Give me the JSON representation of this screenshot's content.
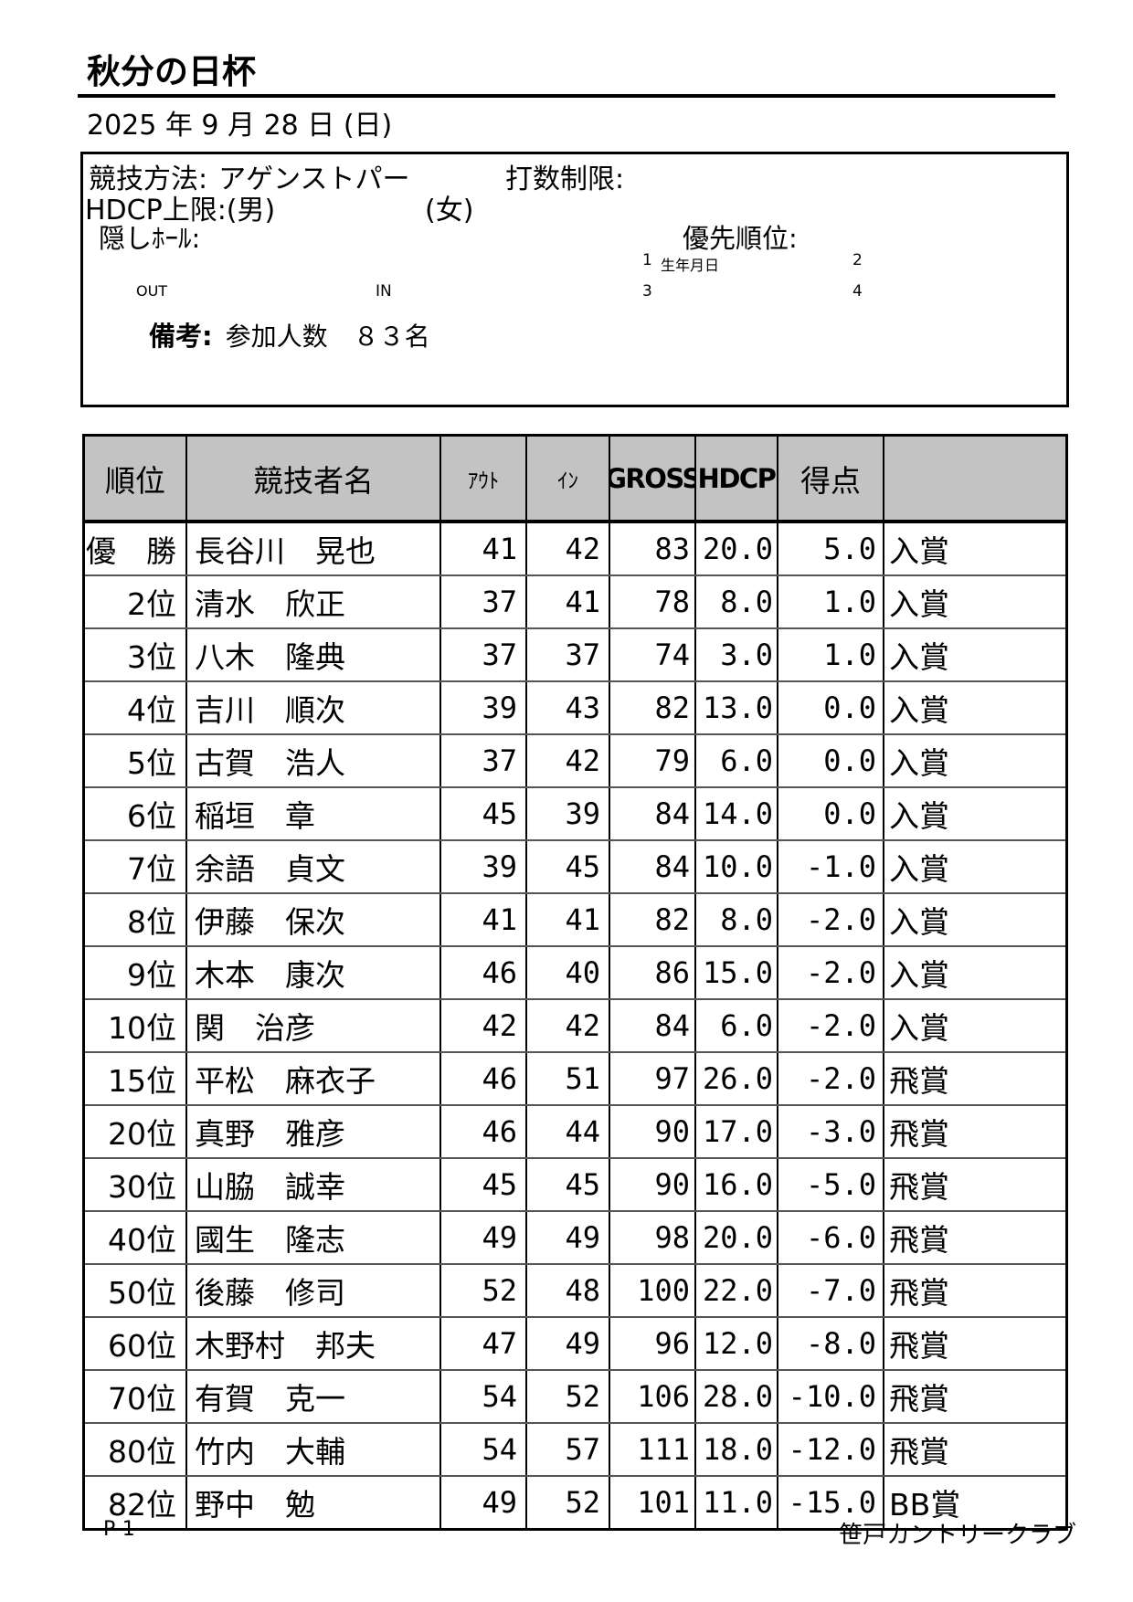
{
  "page": {
    "title": "秋分の日杯",
    "date": "2025 年 9 月 28 日 (日)",
    "footer_left": "P-1",
    "footer_right": "笹戸カントリークラブ"
  },
  "info_box": {
    "method_label": "競技方法:",
    "method_value": "アゲンストパー",
    "stroke_limit_label": "打数制限:",
    "hdcp_limit_label": "HDCP上限:(男)",
    "hdcp_female": "(女)",
    "hidden_hole_label": "隠しﾎｰﾙ:",
    "priority_label": "優先順位:",
    "priority1_num": "1",
    "priority1_label": "生年月日",
    "priority2_num": "2",
    "priority3_num": "3",
    "priority4_num": "4",
    "out_label": "OUT",
    "in_label": "IN",
    "remarks_label": "備考:",
    "remarks_value": "参加人数　８３名"
  },
  "table": {
    "headers": [
      "順位",
      "競技者名",
      "ｱｳﾄ",
      "ｲﾝ",
      "GROSS",
      "HDCP",
      "得点",
      ""
    ],
    "rows": [
      {
        "rank": "優　勝",
        "name": "長谷川　晃也",
        "out": "41",
        "in": "42",
        "gross": "83",
        "hdcp": "20.0",
        "points": "5.0",
        "award": "入賞"
      },
      {
        "rank": "2位",
        "name": "清水　欣正",
        "out": "37",
        "in": "41",
        "gross": "78",
        "hdcp": "8.0",
        "points": "1.0",
        "award": "入賞"
      },
      {
        "rank": "3位",
        "name": "八木　隆典",
        "out": "37",
        "in": "37",
        "gross": "74",
        "hdcp": "3.0",
        "points": "1.0",
        "award": "入賞"
      },
      {
        "rank": "4位",
        "name": "吉川　順次",
        "out": "39",
        "in": "43",
        "gross": "82",
        "hdcp": "13.0",
        "points": "0.0",
        "award": "入賞"
      },
      {
        "rank": "5位",
        "name": "古賀　浩人",
        "out": "37",
        "in": "42",
        "gross": "79",
        "hdcp": "6.0",
        "points": "0.0",
        "award": "入賞"
      },
      {
        "rank": "6位",
        "name": "稲垣　章",
        "out": "45",
        "in": "39",
        "gross": "84",
        "hdcp": "14.0",
        "points": "0.0",
        "award": "入賞"
      },
      {
        "rank": "7位",
        "name": "余語　貞文",
        "out": "39",
        "in": "45",
        "gross": "84",
        "hdcp": "10.0",
        "points": "-1.0",
        "award": "入賞"
      },
      {
        "rank": "8位",
        "name": "伊藤　保次",
        "out": "41",
        "in": "41",
        "gross": "82",
        "hdcp": "8.0",
        "points": "-2.0",
        "award": "入賞"
      },
      {
        "rank": "9位",
        "name": "木本　康次",
        "out": "46",
        "in": "40",
        "gross": "86",
        "hdcp": "15.0",
        "points": "-2.0",
        "award": "入賞"
      },
      {
        "rank": "10位",
        "name": "関　治彦",
        "out": "42",
        "in": "42",
        "gross": "84",
        "hdcp": "6.0",
        "points": "-2.0",
        "award": "入賞"
      },
      {
        "rank": "15位",
        "name": "平松　麻衣子",
        "out": "46",
        "in": "51",
        "gross": "97",
        "hdcp": "26.0",
        "points": "-2.0",
        "award": "飛賞"
      },
      {
        "rank": "20位",
        "name": "真野　雅彦",
        "out": "46",
        "in": "44",
        "gross": "90",
        "hdcp": "17.0",
        "points": "-3.0",
        "award": "飛賞"
      },
      {
        "rank": "30位",
        "name": "山脇　誠幸",
        "out": "45",
        "in": "45",
        "gross": "90",
        "hdcp": "16.0",
        "points": "-5.0",
        "award": "飛賞"
      },
      {
        "rank": "40位",
        "name": "國生　隆志",
        "out": "49",
        "in": "49",
        "gross": "98",
        "hdcp": "20.0",
        "points": "-6.0",
        "award": "飛賞"
      },
      {
        "rank": "50位",
        "name": "後藤　修司",
        "out": "52",
        "in": "48",
        "gross": "100",
        "hdcp": "22.0",
        "points": "-7.0",
        "award": "飛賞"
      },
      {
        "rank": "60位",
        "name": "木野村　邦夫",
        "out": "47",
        "in": "49",
        "gross": "96",
        "hdcp": "12.0",
        "points": "-8.0",
        "award": "飛賞"
      },
      {
        "rank": "70位",
        "name": "有賀　克一",
        "out": "54",
        "in": "52",
        "gross": "106",
        "hdcp": "28.0",
        "points": "-10.0",
        "award": "飛賞"
      },
      {
        "rank": "80位",
        "name": "竹内　大輔",
        "out": "54",
        "in": "57",
        "gross": "111",
        "hdcp": "18.0",
        "points": "-12.0",
        "award": "飛賞"
      },
      {
        "rank": "82位",
        "name": "野中　勉",
        "out": "49",
        "in": "52",
        "gross": "101",
        "hdcp": "11.0",
        "points": "-15.0",
        "award": "BB賞"
      }
    ]
  }
}
